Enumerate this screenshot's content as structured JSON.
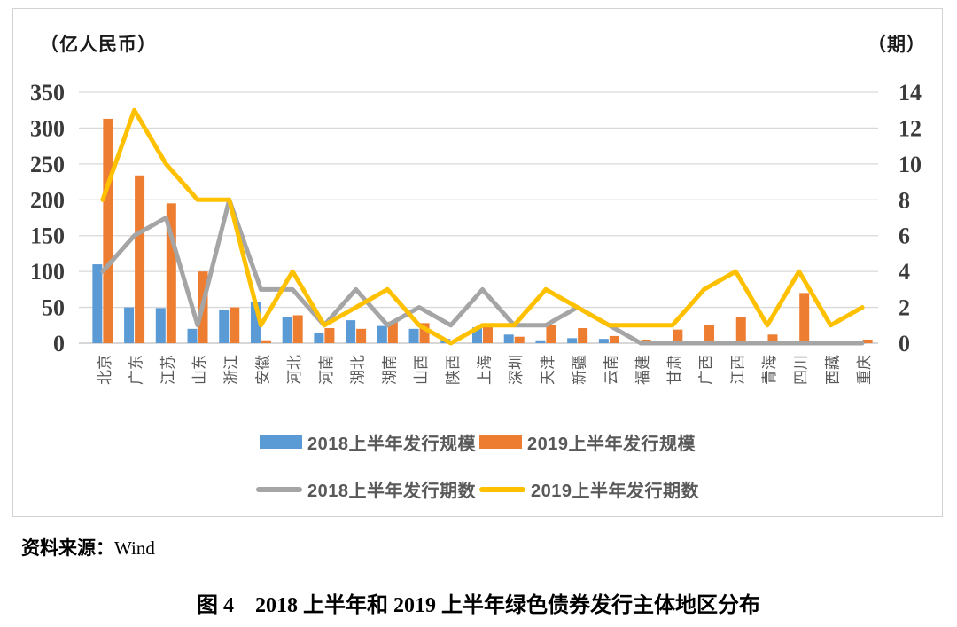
{
  "panel": {
    "left_unit": "（亿人民币）",
    "right_unit": "（期）"
  },
  "chart_data": {
    "type": "bar+line combo",
    "categories": [
      "北京",
      "广东",
      "江苏",
      "山东",
      "浙江",
      "安徽",
      "河北",
      "河南",
      "湖北",
      "湖南",
      "山西",
      "陕西",
      "上海",
      "深圳",
      "天津",
      "新疆",
      "云南",
      "福建",
      "甘肃",
      "广西",
      "江西",
      "青海",
      "四川",
      "西藏",
      "重庆"
    ],
    "left_axis": {
      "label": "（亿人民币）",
      "ticks": [
        0,
        50,
        100,
        150,
        200,
        250,
        300,
        350
      ],
      "range": [
        0,
        350
      ]
    },
    "right_axis": {
      "label": "（期）",
      "ticks": [
        0,
        2,
        4,
        6,
        8,
        10,
        12,
        14
      ],
      "range": [
        0,
        14
      ]
    },
    "grid": "horizontal",
    "legend_position": "bottom",
    "series": [
      {
        "name": "2018上半年发行规模",
        "type": "bar",
        "axis": "left",
        "color": "#5B9BD5",
        "values": [
          110,
          50,
          49,
          20,
          46,
          57,
          37,
          14,
          32,
          24,
          20,
          6,
          22,
          12,
          4,
          7,
          6,
          0,
          0,
          0,
          0,
          0,
          0,
          0,
          0
        ]
      },
      {
        "name": "2019上半年发行规模",
        "type": "bar",
        "axis": "left",
        "color": "#ED7D31",
        "values": [
          313,
          234,
          195,
          100,
          50,
          4,
          39,
          21,
          20,
          30,
          28,
          0,
          26,
          9,
          25,
          21,
          10,
          5,
          19,
          26,
          36,
          12,
          70,
          0,
          5
        ]
      },
      {
        "name": "2018上半年发行期数",
        "type": "line",
        "axis": "right",
        "color": "#A5A5A5",
        "values": [
          4,
          6,
          7,
          1,
          8,
          3,
          3,
          1,
          3,
          1,
          2,
          1,
          3,
          1,
          1,
          2,
          1,
          0,
          0,
          0,
          0,
          0,
          0,
          0,
          0
        ]
      },
      {
        "name": "2019上半年发行期数",
        "type": "line",
        "axis": "right",
        "color": "#FFC000",
        "values": [
          8,
          13,
          10,
          8,
          8,
          1,
          4,
          1,
          2,
          3,
          1,
          0,
          1,
          1,
          3,
          2,
          1,
          1,
          1,
          3,
          4,
          1,
          4,
          1,
          2
        ]
      }
    ]
  },
  "legend": {
    "items": [
      {
        "label": "2018上半年发行规模",
        "type": "bar",
        "color": "#5B9BD5"
      },
      {
        "label": "2019上半年发行规模",
        "type": "bar",
        "color": "#ED7D31"
      },
      {
        "label": "2018上半年发行期数",
        "type": "line",
        "color": "#A5A5A5"
      },
      {
        "label": "2019上半年发行期数",
        "type": "line",
        "color": "#FFC000"
      }
    ]
  },
  "source": {
    "label": "资料来源：",
    "value": "Wind"
  },
  "caption": "图 4　2018 上半年和 2019 上半年绿色债券发行主体地区分布",
  "colors": {
    "grid": "#d9d9d9",
    "baseline": "#bfbfbf",
    "axis_text": "#3b3b3b",
    "category_text": "#595959",
    "panel_border": "#d2d2d2"
  }
}
